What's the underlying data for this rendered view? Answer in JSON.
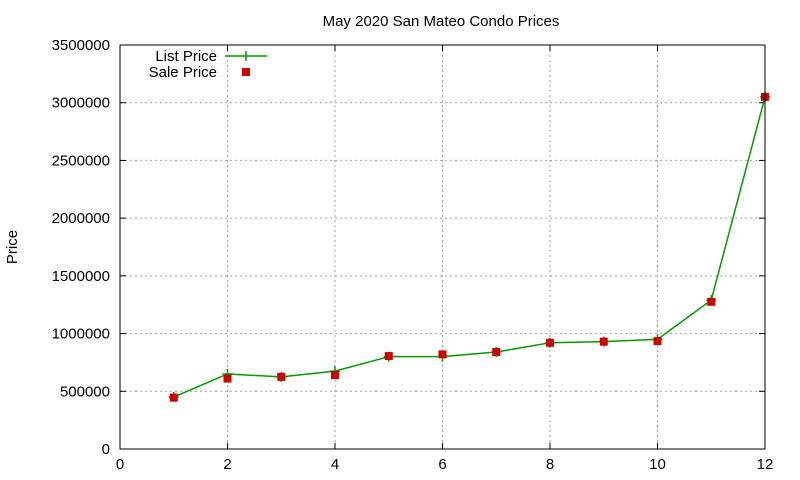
{
  "chart_data": {
    "type": "line",
    "title": "May 2020 San Mateo Condo Prices",
    "xlabel": "",
    "ylabel": "Price",
    "xlim": [
      0,
      12
    ],
    "ylim": [
      0,
      3500000
    ],
    "xticks": [
      0,
      2,
      4,
      6,
      8,
      10,
      12
    ],
    "yticks": [
      0,
      500000,
      1000000,
      1500000,
      2000000,
      2500000,
      3000000,
      3500000
    ],
    "grid": true,
    "legend_position": "top-left",
    "series": [
      {
        "name": "List Price",
        "style": "line-with-plus-markers",
        "color": "#009900",
        "x": [
          1,
          2,
          3,
          4,
          5,
          6,
          7,
          8,
          9,
          10,
          11,
          12
        ],
        "y": [
          450000,
          650000,
          625000,
          675000,
          800000,
          800000,
          840000,
          920000,
          930000,
          950000,
          1290000,
          3050000
        ]
      },
      {
        "name": "Sale Price",
        "style": "square-markers",
        "color": "#cc0000",
        "x": [
          1,
          2,
          3,
          4,
          5,
          6,
          7,
          8,
          9,
          10,
          11,
          12
        ],
        "y": [
          445000,
          610000,
          625000,
          640000,
          805000,
          820000,
          840000,
          920000,
          930000,
          935000,
          1275000,
          3050000
        ]
      }
    ]
  }
}
